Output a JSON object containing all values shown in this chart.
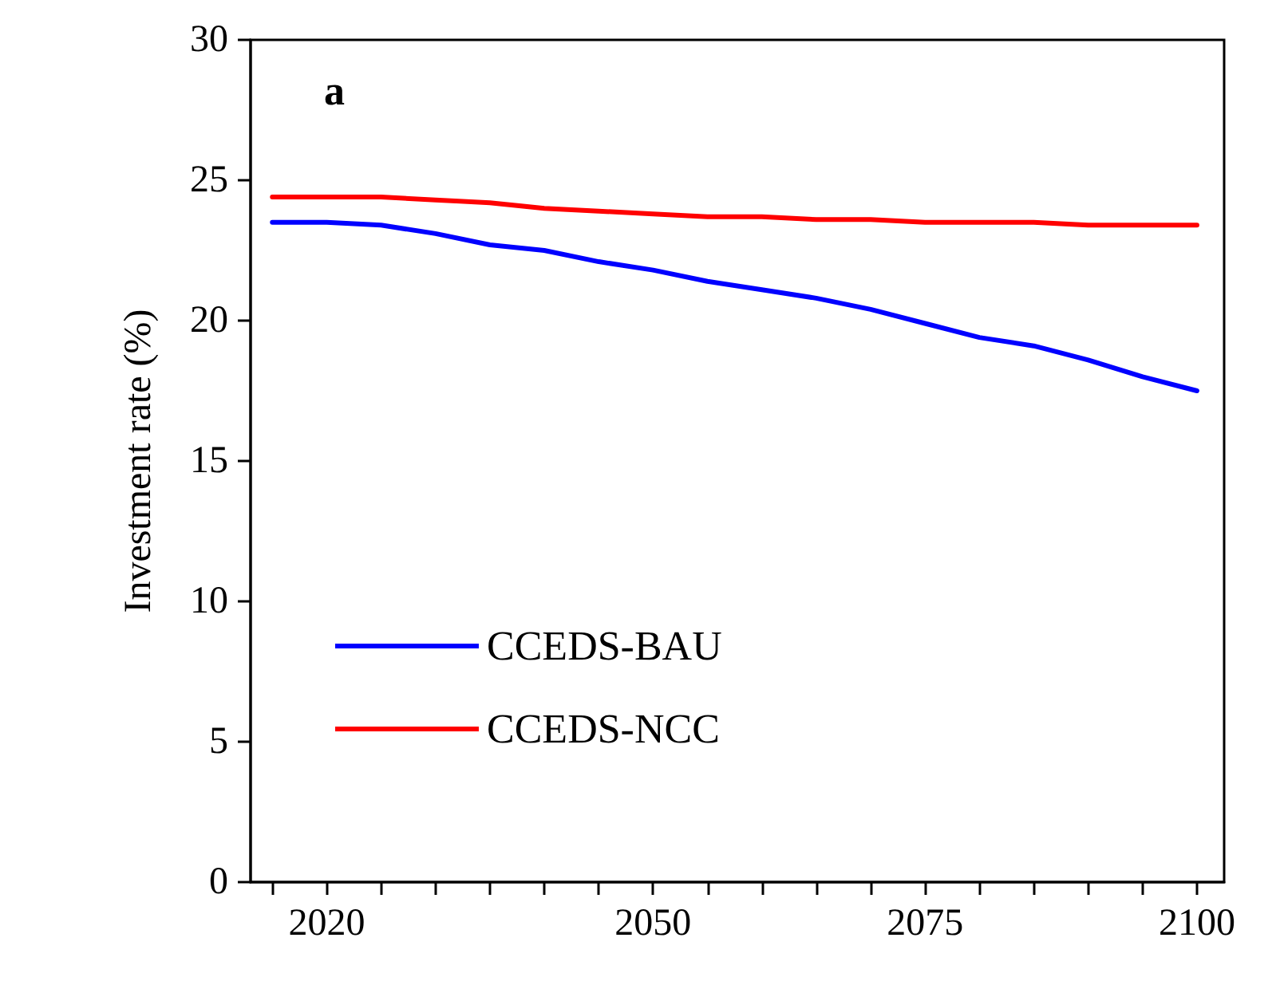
{
  "chart_data": {
    "type": "line",
    "ylabel": "Investment rate (%)",
    "annotations": [
      "a"
    ],
    "x": [
      2015,
      2020,
      2025,
      2030,
      2035,
      2040,
      2045,
      2050,
      2055,
      2060,
      2065,
      2070,
      2075,
      2080,
      2085,
      2090,
      2095,
      2100
    ],
    "series": [
      {
        "name": "CCEDS-BAU",
        "color": "#0000ff",
        "values": [
          23.5,
          23.5,
          23.4,
          23.1,
          22.7,
          22.5,
          22.1,
          21.8,
          21.4,
          21.1,
          20.8,
          20.4,
          19.9,
          19.4,
          19.1,
          18.6,
          18.0,
          17.5
        ]
      },
      {
        "name": "CCEDS-NCC",
        "color": "#ff0000",
        "values": [
          24.4,
          24.4,
          24.4,
          24.3,
          24.2,
          24.0,
          23.9,
          23.8,
          23.7,
          23.7,
          23.6,
          23.6,
          23.5,
          23.5,
          23.5,
          23.4,
          23.4,
          23.4
        ]
      }
    ],
    "xlim": [
      2013,
      2102.5
    ],
    "xticks": [
      {
        "value": 2015,
        "label": null
      },
      2020,
      {
        "value": 2025,
        "label": null
      },
      {
        "value": 2030,
        "label": null
      },
      {
        "value": 2035,
        "label": null
      },
      {
        "value": 2040,
        "label": null
      },
      {
        "value": 2045,
        "label": null
      },
      2050,
      {
        "value": 2055,
        "label": null
      },
      {
        "value": 2060,
        "label": null
      },
      {
        "value": 2065,
        "label": null
      },
      {
        "value": 2070,
        "label": null
      },
      2075,
      {
        "value": 2080,
        "label": null
      },
      {
        "value": 2085,
        "label": null
      },
      {
        "value": 2090,
        "label": null
      },
      {
        "value": 2095,
        "label": null
      },
      2100
    ],
    "ylim": [
      0,
      30
    ],
    "yticks": [
      0,
      5,
      10,
      15,
      20,
      25,
      30
    ],
    "grid": false,
    "legend": "bottom left",
    "marker": "none",
    "line_style": "solid"
  }
}
